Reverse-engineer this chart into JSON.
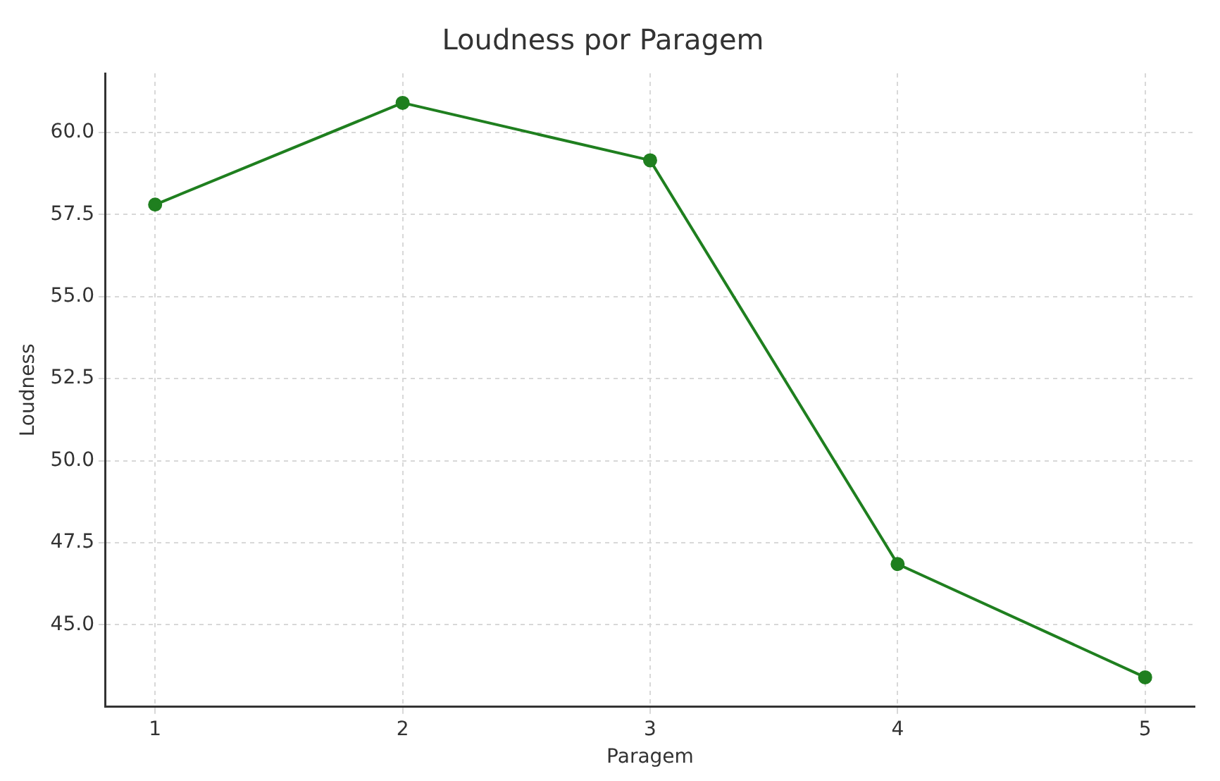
{
  "chart_data": {
    "type": "line",
    "title": "Loudness por Paragem",
    "xlabel": "Paragem",
    "ylabel": "Loudness",
    "x": [
      1,
      2,
      3,
      4,
      5
    ],
    "series": [
      {
        "color": "#1f7f1f",
        "values": [
          57.8,
          60.9,
          59.15,
          46.85,
          43.4
        ]
      }
    ],
    "xlim": [
      0.8,
      5.2
    ],
    "xticks": [
      1,
      2,
      3,
      4,
      5
    ],
    "ylim": [
      42.5,
      61.8
    ],
    "yticks": [
      {
        "value": 45,
        "label": "45.0"
      },
      {
        "value": 47.5,
        "label": "47.5"
      },
      {
        "value": 50,
        "label": "50.0"
      },
      {
        "value": 52.5,
        "label": "52.5"
      },
      {
        "value": 55,
        "label": "55.0"
      },
      {
        "value": 57.5,
        "label": "57.5"
      },
      {
        "value": 60,
        "label": "60.0"
      }
    ],
    "grid": true,
    "marker": "circle",
    "line_style": "solid"
  }
}
